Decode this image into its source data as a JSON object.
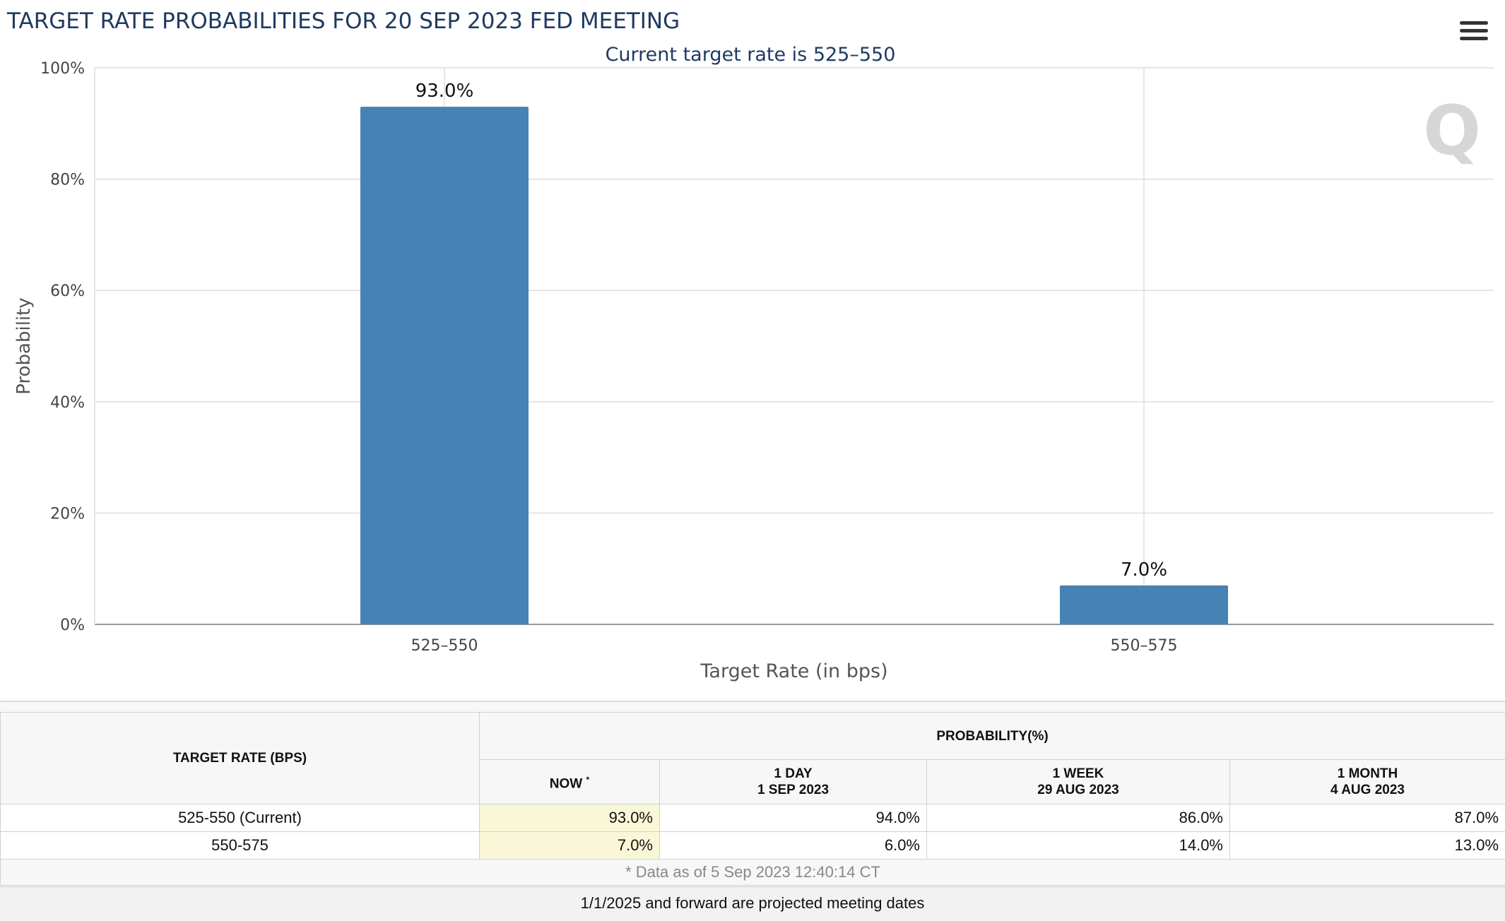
{
  "chart_data": {
    "type": "bar",
    "title": "TARGET RATE PROBABILITIES FOR 20 SEP 2023 FED MEETING",
    "subtitle": "Current target rate is 525–550",
    "categories": [
      "525–550",
      "550–575"
    ],
    "values": [
      93.0,
      7.0
    ],
    "data_labels": [
      "93.0%",
      "7.0%"
    ],
    "xlabel": "Target Rate (in bps)",
    "ylabel": "Probability",
    "ylim": [
      0,
      100
    ],
    "yticks": [
      "0%",
      "20%",
      "40%",
      "60%",
      "80%",
      "100%"
    ],
    "grid": true,
    "legend": "none",
    "bar_color": "#4682b4"
  },
  "watermark": "Q",
  "table": {
    "col_rate_header": "TARGET RATE (BPS)",
    "prob_header": "PROBABILITY(%)",
    "columns": [
      {
        "line1": "NOW",
        "line2": ""
      },
      {
        "line1": "1 DAY",
        "line2": "1 SEP 2023"
      },
      {
        "line1": "1 WEEK",
        "line2": "29 AUG 2023"
      },
      {
        "line1": "1 MONTH",
        "line2": "4 AUG 2023"
      }
    ],
    "now_marker": "*",
    "rows": [
      {
        "rate": "525-550 (Current)",
        "values": [
          "93.0%",
          "94.0%",
          "86.0%",
          "87.0%"
        ]
      },
      {
        "rate": "550-575",
        "values": [
          "7.0%",
          "6.0%",
          "14.0%",
          "13.0%"
        ]
      }
    ],
    "note": "* Data as of 5 Sep 2023 12:40:14 CT"
  },
  "footer": "1/1/2025 and forward are projected meeting dates"
}
